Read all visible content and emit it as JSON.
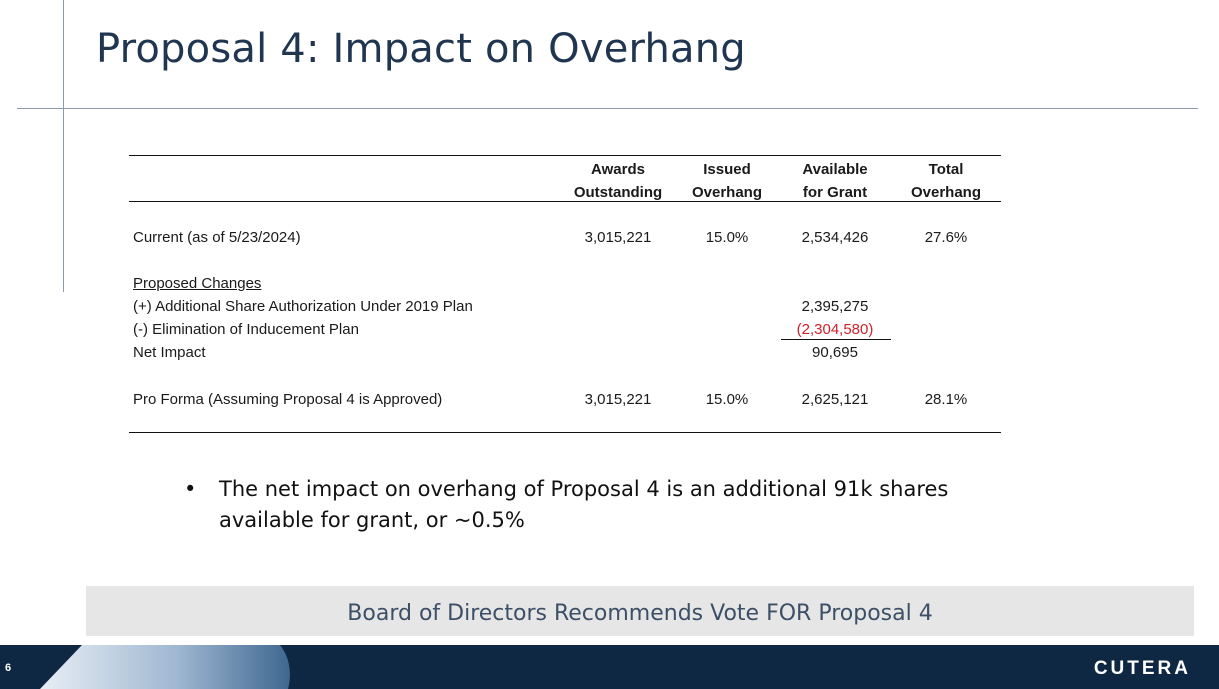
{
  "slide": {
    "title": "Proposal 4:  Impact on Overhang",
    "page_number": "6",
    "logo_text": "CUTERA"
  },
  "table": {
    "headers": [
      {
        "line1": "Awards",
        "line2": "Outstanding"
      },
      {
        "line1": "Issued",
        "line2": "Overhang"
      },
      {
        "line1": "Available",
        "line2": "for Grant"
      },
      {
        "line1": "Total",
        "line2": "Overhang"
      }
    ],
    "current": {
      "label": "Current (as of 5/23/2024)",
      "awards": "3,015,221",
      "issued": "15.0%",
      "available": "2,534,426",
      "total": "27.6%"
    },
    "proposed_changes_label": "Proposed Changes",
    "additional": {
      "label": "(+) Additional Share Authorization Under 2019 Plan",
      "available": "2,395,275"
    },
    "elimination": {
      "label": "(-) Elimination of Inducement Plan",
      "available": "(2,304,580)"
    },
    "net_impact": {
      "label": "Net Impact",
      "available": "90,695"
    },
    "pro_forma": {
      "label": "Pro Forma (Assuming Proposal 4 is Approved)",
      "awards": "3,015,221",
      "issued": "15.0%",
      "available": "2,625,121",
      "total": "28.1%"
    }
  },
  "bullet": {
    "symbol": "•",
    "text": "The net impact on overhang of Proposal 4 is an additional 91k shares available for grant, or ~0.5%"
  },
  "banner": {
    "text": "Board of Directors Recommends Vote FOR Proposal 4"
  },
  "colors": {
    "title": "#1f3550",
    "footer": "#0e2743",
    "negative": "#d0202a",
    "banner_bg": "#e6e6e7"
  }
}
